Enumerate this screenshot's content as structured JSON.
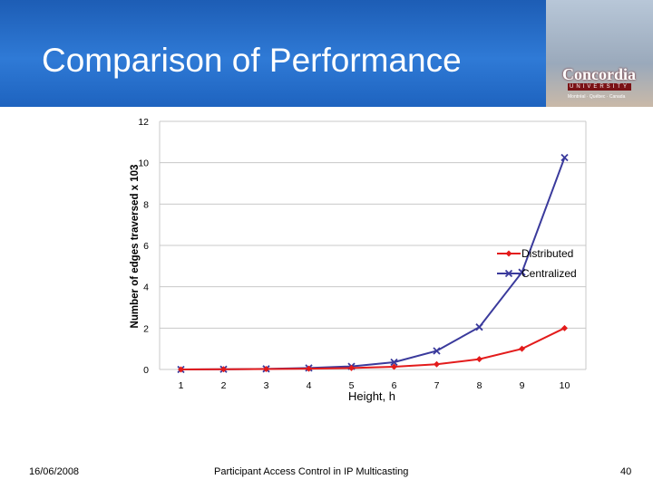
{
  "slide": {
    "title": "Comparison of Performance",
    "date": "16/06/2008",
    "footer": "Participant Access Control in IP Multicasting",
    "page_number": "40",
    "logo_text": "Concordia",
    "logo_sub": "UNIVERSITY",
    "logo_sub2": "Montréal · Québec · Canada"
  },
  "colors": {
    "header": "#1d5db5",
    "distributed": "#e31b1b",
    "centralized": "#3a3a9c",
    "grid": "#c8c8c8"
  },
  "chart_data": {
    "type": "line",
    "xlabel": "Height, h",
    "ylabel": "Number of edges traversed x 103",
    "categories": [
      "1",
      "2",
      "3",
      "4",
      "5",
      "6",
      "7",
      "8",
      "9",
      "10"
    ],
    "ylim": [
      0,
      12
    ],
    "yticks": [
      "0",
      "2",
      "4",
      "6",
      "8",
      "10",
      "12"
    ],
    "grid": true,
    "legend_position": "right",
    "series": [
      {
        "name": "Distributed",
        "marker": "diamond",
        "values": [
          0.0,
          0.01,
          0.02,
          0.04,
          0.07,
          0.13,
          0.25,
          0.5,
          1.0,
          2.0
        ]
      },
      {
        "name": "Centralized",
        "marker": "x",
        "values": [
          0.0,
          0.01,
          0.03,
          0.07,
          0.15,
          0.35,
          0.9,
          2.05,
          4.7,
          10.25
        ]
      }
    ]
  }
}
